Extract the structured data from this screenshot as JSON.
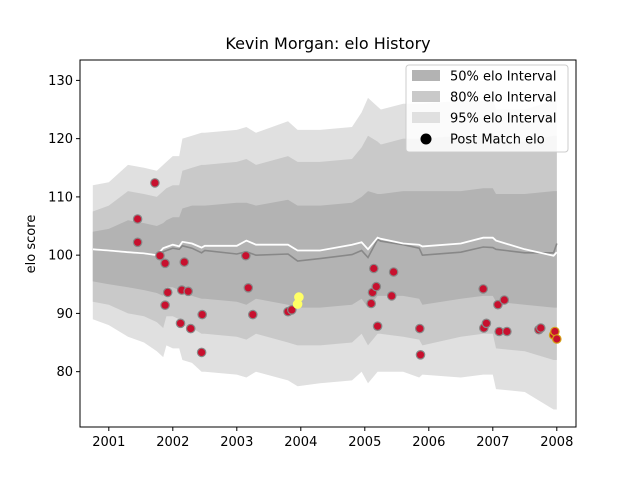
{
  "chart_data": {
    "type": "line",
    "title": "Kevin Morgan: elo History",
    "xlabel": "",
    "ylabel": "elo score",
    "xlim": [
      2000.55,
      2008.3
    ],
    "ylim": [
      70.5,
      133.5
    ],
    "xticks": [
      2001,
      2002,
      2003,
      2004,
      2005,
      2006,
      2007,
      2008
    ],
    "yticks": [
      80,
      90,
      100,
      110,
      120,
      130
    ],
    "grid": false,
    "legend_position": "top-right",
    "legend": [
      {
        "label": "50% elo Interval",
        "kind": "band",
        "color": "#b3b3b3"
      },
      {
        "label": "80% elo Interval",
        "kind": "band",
        "color": "#c9c9c9"
      },
      {
        "label": "95% elo Interval",
        "kind": "band",
        "color": "#e0e0e0"
      },
      {
        "label": "Post Match elo",
        "kind": "marker",
        "color": "#000000"
      }
    ],
    "bands": {
      "x": [
        2000.75,
        2001.0,
        2001.3,
        2001.55,
        2001.75,
        2001.85,
        2001.9,
        2002.0,
        2002.1,
        2002.15,
        2002.3,
        2002.45,
        2002.5,
        2003.0,
        2003.15,
        2003.3,
        2003.8,
        2003.95,
        2004.3,
        2004.8,
        2004.95,
        2005.05,
        2005.2,
        2005.25,
        2005.6,
        2005.85,
        2005.9,
        2006.5,
        2006.85,
        2007.0,
        2007.05,
        2007.5,
        2007.95,
        2008.0
      ],
      "p95_upper": [
        112.0,
        112.5,
        115.5,
        115.0,
        114.5,
        115.5,
        116.0,
        117.0,
        117.0,
        120.0,
        120.5,
        121.0,
        121.0,
        121.5,
        122.0,
        121.0,
        123.0,
        121.5,
        121.5,
        122.0,
        124.5,
        127.0,
        125.5,
        125.0,
        126.0,
        126.0,
        126.0,
        126.5,
        126.5,
        127.0,
        125.0,
        125.0,
        126.5,
        126.5
      ],
      "p80_upper": [
        107.5,
        108.5,
        111.0,
        110.5,
        110.0,
        111.0,
        111.5,
        112.0,
        112.0,
        114.5,
        115.0,
        115.5,
        115.5,
        116.0,
        116.5,
        115.5,
        117.0,
        116.0,
        116.0,
        116.5,
        118.5,
        120.5,
        119.5,
        119.0,
        120.0,
        120.0,
        120.0,
        120.5,
        120.5,
        121.0,
        119.5,
        119.5,
        120.5,
        120.5
      ],
      "p50_upper": [
        104.0,
        104.5,
        106.0,
        105.5,
        105.0,
        105.5,
        106.0,
        106.5,
        106.5,
        108.0,
        108.5,
        108.5,
        108.5,
        109.0,
        109.0,
        108.5,
        109.5,
        108.5,
        108.5,
        109.0,
        110.0,
        111.0,
        110.5,
        110.5,
        111.0,
        111.0,
        111.0,
        111.0,
        111.5,
        111.5,
        110.5,
        110.5,
        111.0,
        111.0
      ],
      "center": [
        101.0,
        100.8,
        100.5,
        100.3,
        100.0,
        100.6,
        100.8,
        101.2,
        101.0,
        101.6,
        101.2,
        100.4,
        100.8,
        100.2,
        100.6,
        100.0,
        100.2,
        99.0,
        99.4,
        100.1,
        100.8,
        99.6,
        102.7,
        102.4,
        101.8,
        101.2,
        100.0,
        100.5,
        101.4,
        101.3,
        101.0,
        100.4,
        100.4,
        102.0
      ],
      "p50_lower": [
        95.5,
        95.0,
        94.5,
        94.0,
        93.5,
        93.0,
        94.5,
        94.5,
        94.0,
        93.5,
        93.0,
        92.5,
        92.5,
        92.0,
        91.5,
        92.5,
        91.5,
        91.0,
        91.0,
        91.5,
        92.5,
        91.0,
        93.0,
        93.0,
        93.0,
        92.5,
        91.5,
        92.5,
        93.0,
        93.0,
        92.0,
        91.5,
        91.0,
        91.0
      ],
      "p80_lower": [
        92.0,
        91.5,
        90.0,
        89.5,
        88.5,
        87.5,
        89.5,
        89.5,
        89.0,
        88.0,
        87.5,
        86.5,
        86.5,
        86.0,
        85.5,
        86.5,
        85.0,
        84.5,
        84.5,
        85.0,
        86.5,
        84.5,
        86.5,
        86.5,
        86.0,
        85.5,
        84.5,
        86.0,
        86.5,
        86.5,
        84.0,
        83.5,
        82.0,
        82.0
      ],
      "p95_lower": [
        89.0,
        88.0,
        86.0,
        85.0,
        83.5,
        82.5,
        84.5,
        84.0,
        84.0,
        82.0,
        81.5,
        80.0,
        80.0,
        79.5,
        79.0,
        80.0,
        78.5,
        77.5,
        78.0,
        78.5,
        80.0,
        78.0,
        80.0,
        80.0,
        80.0,
        79.0,
        79.5,
        79.0,
        79.5,
        79.5,
        77.0,
        76.5,
        73.5,
        73.5
      ]
    },
    "rating_line": {
      "x": [
        2000.75,
        2001.0,
        2001.3,
        2001.55,
        2001.75,
        2001.85,
        2001.9,
        2002.0,
        2002.1,
        2002.15,
        2002.3,
        2002.45,
        2002.5,
        2003.0,
        2003.15,
        2003.3,
        2003.8,
        2003.95,
        2004.3,
        2004.8,
        2004.95,
        2005.05,
        2005.2,
        2005.25,
        2005.6,
        2005.85,
        2005.9,
        2006.5,
        2006.85,
        2007.0,
        2007.05,
        2007.5,
        2007.95,
        2008.0
      ],
      "y": [
        101.0,
        100.8,
        100.5,
        100.3,
        100.0,
        101.2,
        101.4,
        101.8,
        101.5,
        102.3,
        102.0,
        101.3,
        101.6,
        101.6,
        102.5,
        101.8,
        101.8,
        100.8,
        100.8,
        101.8,
        102.2,
        101.0,
        103.0,
        102.8,
        102.0,
        101.8,
        101.5,
        102.0,
        103.0,
        103.0,
        102.5,
        101.0,
        99.9,
        100.5
      ]
    },
    "points": [
      {
        "x": 2001.45,
        "y": 106.2,
        "highlight": "none"
      },
      {
        "x": 2001.45,
        "y": 102.2,
        "highlight": "none"
      },
      {
        "x": 2001.72,
        "y": 112.4,
        "highlight": "none"
      },
      {
        "x": 2001.8,
        "y": 99.9,
        "highlight": "none"
      },
      {
        "x": 2001.88,
        "y": 98.6,
        "highlight": "none"
      },
      {
        "x": 2001.88,
        "y": 91.4,
        "highlight": "none"
      },
      {
        "x": 2001.92,
        "y": 93.6,
        "highlight": "none"
      },
      {
        "x": 2002.12,
        "y": 88.3,
        "highlight": "none"
      },
      {
        "x": 2002.14,
        "y": 94.0,
        "highlight": "none"
      },
      {
        "x": 2002.18,
        "y": 98.8,
        "highlight": "none"
      },
      {
        "x": 2002.24,
        "y": 93.8,
        "highlight": "none"
      },
      {
        "x": 2002.28,
        "y": 87.4,
        "highlight": "none"
      },
      {
        "x": 2002.45,
        "y": 83.3,
        "highlight": "none"
      },
      {
        "x": 2002.46,
        "y": 89.8,
        "highlight": "none"
      },
      {
        "x": 2003.14,
        "y": 99.9,
        "highlight": "none"
      },
      {
        "x": 2003.18,
        "y": 94.4,
        "highlight": "none"
      },
      {
        "x": 2003.25,
        "y": 89.8,
        "highlight": "none"
      },
      {
        "x": 2003.8,
        "y": 90.3,
        "highlight": "none"
      },
      {
        "x": 2003.86,
        "y": 90.6,
        "highlight": "none"
      },
      {
        "x": 2003.95,
        "y": 91.6,
        "highlight": "yellow"
      },
      {
        "x": 2003.97,
        "y": 92.8,
        "highlight": "yellow"
      },
      {
        "x": 2005.1,
        "y": 91.7,
        "highlight": "none"
      },
      {
        "x": 2005.12,
        "y": 93.6,
        "highlight": "none"
      },
      {
        "x": 2005.14,
        "y": 97.7,
        "highlight": "none"
      },
      {
        "x": 2005.18,
        "y": 94.6,
        "highlight": "none"
      },
      {
        "x": 2005.2,
        "y": 87.8,
        "highlight": "none"
      },
      {
        "x": 2005.42,
        "y": 93.0,
        "highlight": "none"
      },
      {
        "x": 2005.45,
        "y": 97.1,
        "highlight": "none"
      },
      {
        "x": 2005.86,
        "y": 87.4,
        "highlight": "none"
      },
      {
        "x": 2005.87,
        "y": 82.9,
        "highlight": "none"
      },
      {
        "x": 2006.85,
        "y": 94.2,
        "highlight": "none"
      },
      {
        "x": 2006.86,
        "y": 87.5,
        "highlight": "none"
      },
      {
        "x": 2006.9,
        "y": 88.3,
        "highlight": "none"
      },
      {
        "x": 2007.08,
        "y": 91.5,
        "highlight": "none"
      },
      {
        "x": 2007.1,
        "y": 86.9,
        "highlight": "none"
      },
      {
        "x": 2007.18,
        "y": 92.3,
        "highlight": "none"
      },
      {
        "x": 2007.22,
        "y": 86.9,
        "highlight": "none"
      },
      {
        "x": 2007.72,
        "y": 87.2,
        "highlight": "none"
      },
      {
        "x": 2007.75,
        "y": 87.5,
        "highlight": "none"
      },
      {
        "x": 2007.95,
        "y": 86.3,
        "highlight": "gold"
      },
      {
        "x": 2007.97,
        "y": 86.9,
        "highlight": "gold"
      },
      {
        "x": 2008.0,
        "y": 85.6,
        "highlight": "gold"
      }
    ],
    "colors": {
      "p95": "#e0e0e0",
      "p80": "#c9c9c9",
      "p50": "#b3b3b3",
      "center_line": "#888888",
      "rating_line": "#ffffff",
      "point_fill": "#c8102e",
      "point_edge": "#888888",
      "highlight_yellow": "#ffff66",
      "highlight_gold": "#d4a017"
    }
  }
}
